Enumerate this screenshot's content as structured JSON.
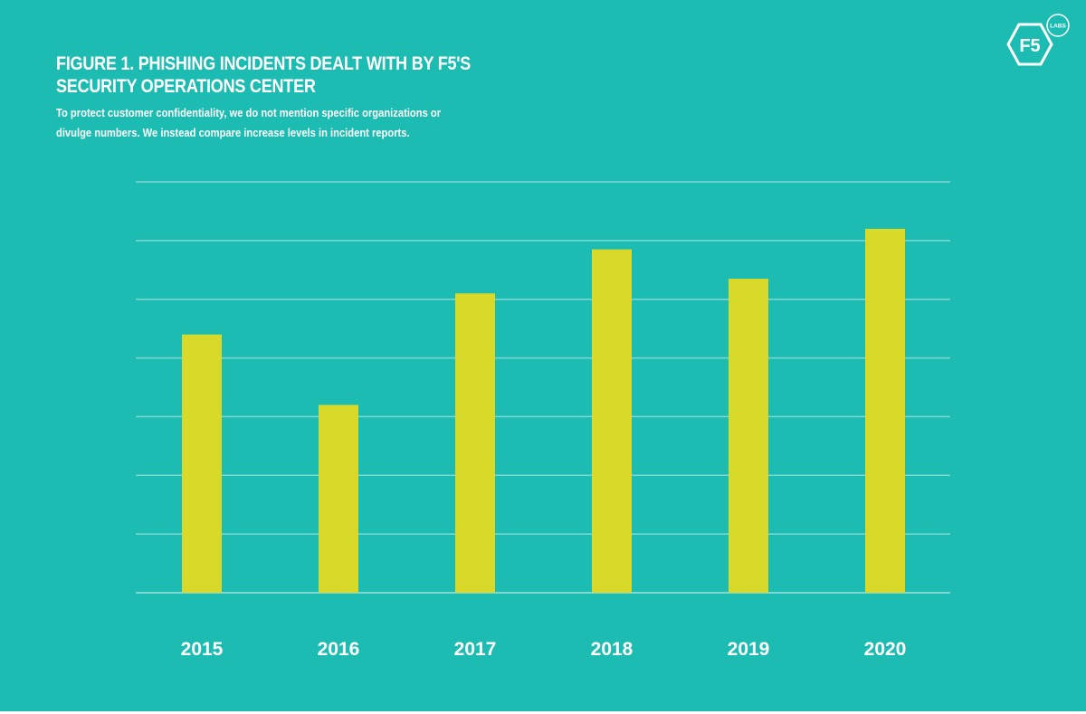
{
  "header": {
    "title_line1": "FIGURE 1. PHISHING INCIDENTS DEALT WITH BY F5's",
    "title_line2": "SECURITY OPERATIONS CENTER",
    "subtitle_line1": "To protect customer confidentiality, we do not mention specific organizations or",
    "subtitle_line2": "divulge numbers. We instead compare increase levels in incident reports."
  },
  "logo": {
    "text": "F5",
    "badge": "LABS",
    "icon": "f5-labs-logo"
  },
  "colors": {
    "background": "#1cbcb2",
    "bar": "#d8d928",
    "grid": "#7fd8d1",
    "text": "#ffffff"
  },
  "chart_data": {
    "type": "bar",
    "title": "FIGURE 1. PHISHING INCIDENTS DEALT WITH BY F5's SECURITY OPERATIONS CENTER",
    "categories": [
      "2015",
      "2016",
      "2017",
      "2018",
      "2019",
      "2020"
    ],
    "values": [
      4.4,
      3.2,
      5.1,
      5.85,
      5.35,
      6.2
    ],
    "xlabel": "",
    "ylabel": "",
    "ylim": [
      0,
      7
    ],
    "y_gridlines": 7,
    "y_tick_labels_shown": false,
    "legend": "none"
  }
}
